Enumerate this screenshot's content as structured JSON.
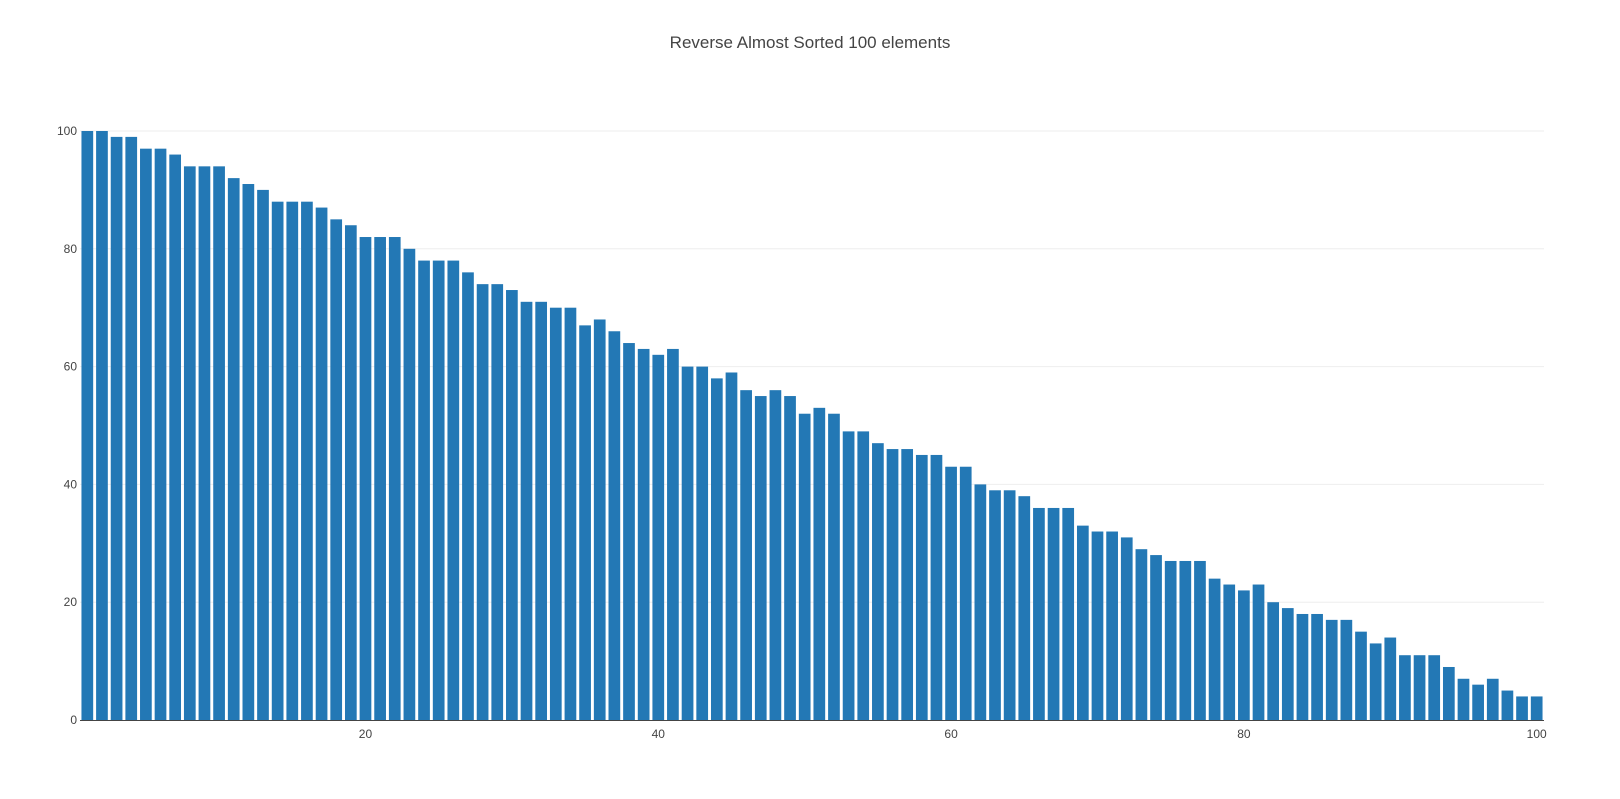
{
  "chart_data": {
    "type": "bar",
    "title": "Reverse Almost Sorted 100 elements",
    "xlabel": "",
    "ylabel": "",
    "x": [
      1,
      2,
      3,
      4,
      5,
      6,
      7,
      8,
      9,
      10,
      11,
      12,
      13,
      14,
      15,
      16,
      17,
      18,
      19,
      20,
      21,
      22,
      23,
      24,
      25,
      26,
      27,
      28,
      29,
      30,
      31,
      32,
      33,
      34,
      35,
      36,
      37,
      38,
      39,
      40,
      41,
      42,
      43,
      44,
      45,
      46,
      47,
      48,
      49,
      50,
      51,
      52,
      53,
      54,
      55,
      56,
      57,
      58,
      59,
      60,
      61,
      62,
      63,
      64,
      65,
      66,
      67,
      68,
      69,
      70,
      71,
      72,
      73,
      74,
      75,
      76,
      77,
      78,
      79,
      80,
      81,
      82,
      83,
      84,
      85,
      86,
      87,
      88,
      89,
      90,
      91,
      92,
      93,
      94,
      95,
      96,
      97,
      98,
      99,
      100
    ],
    "values": [
      100,
      100,
      99,
      99,
      97,
      97,
      96,
      94,
      94,
      94,
      92,
      91,
      90,
      88,
      88,
      88,
      87,
      85,
      84,
      82,
      82,
      82,
      80,
      78,
      78,
      78,
      76,
      74,
      74,
      73,
      71,
      71,
      70,
      70,
      67,
      68,
      66,
      64,
      63,
      62,
      63,
      60,
      60,
      58,
      59,
      56,
      55,
      56,
      55,
      52,
      53,
      52,
      49,
      49,
      47,
      46,
      46,
      45,
      45,
      43,
      43,
      40,
      39,
      39,
      38,
      36,
      36,
      36,
      33,
      32,
      32,
      31,
      29,
      28,
      27,
      27,
      27,
      24,
      23,
      22,
      23,
      20,
      19,
      18,
      18,
      17,
      17,
      15,
      13,
      14,
      11,
      11,
      11,
      9,
      7,
      6,
      7,
      5,
      4,
      4
    ],
    "xlim": [
      0.5,
      100.5
    ],
    "ylim": [
      0,
      100
    ],
    "xticks": [
      20,
      40,
      60,
      80,
      100
    ],
    "yticks": [
      0,
      20,
      40,
      60,
      80,
      100
    ],
    "grid": true,
    "legend": "none",
    "bar_color": "#2378b5"
  }
}
